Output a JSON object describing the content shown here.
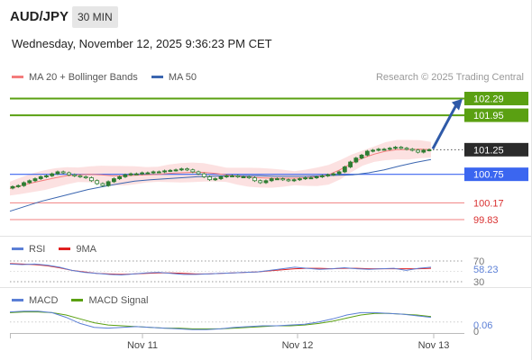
{
  "header": {
    "symbol": "AUD/JPY",
    "timeframe": "30 MIN",
    "datetime": "Wednesday, November 12, 2025 9:36:23 PM CET"
  },
  "legend": {
    "ma20": "MA 20 + Bollinger Bands",
    "ma50": "MA 50",
    "credit": "Research © 2025 Trading Central"
  },
  "colors": {
    "ma20": "#f47c7c",
    "ma50": "#3b66b0",
    "bands_fill": "#fbd9d9",
    "resistance": "#5aa012",
    "pivot": "#3b66f0",
    "support": "#f08080",
    "candle": "#2e7d32",
    "rsi": "#5b7fd6",
    "rsi_ma": "#e02020",
    "macd": "#5b7fd6",
    "macd_signal": "#5aa012",
    "arrow": "#2f5aa8"
  },
  "chart_data": [
    {
      "type": "candlestick",
      "panel": "price",
      "y_range": [
        99.5,
        102.5
      ],
      "x_labels": [
        "Nov 11",
        "Nov 12",
        "Nov 13"
      ],
      "levels": [
        {
          "label": "102.29",
          "value": 102.29,
          "kind": "resistance"
        },
        {
          "label": "101.95",
          "value": 101.95,
          "kind": "resistance"
        },
        {
          "label": "101.25",
          "value": 101.25,
          "kind": "last"
        },
        {
          "label": "100.75",
          "value": 100.75,
          "kind": "pivot"
        },
        {
          "label": "100.17",
          "value": 100.17,
          "kind": "support"
        },
        {
          "label": "99.83",
          "value": 99.83,
          "kind": "support"
        }
      ],
      "close_series": [
        100.5,
        100.52,
        100.58,
        100.62,
        100.66,
        100.7,
        100.72,
        100.76,
        100.8,
        100.78,
        100.74,
        100.72,
        100.7,
        100.68,
        100.62,
        100.56,
        100.52,
        100.6,
        100.66,
        100.7,
        100.74,
        100.76,
        100.76,
        100.78,
        100.78,
        100.8,
        100.8,
        100.82,
        100.83,
        100.84,
        100.86,
        100.84,
        100.8,
        100.76,
        100.7,
        100.64,
        100.66,
        100.7,
        100.72,
        100.72,
        100.7,
        100.7,
        100.68,
        100.62,
        100.58,
        100.62,
        100.66,
        100.66,
        100.64,
        100.62,
        100.64,
        100.66,
        100.68,
        100.68,
        100.7,
        100.72,
        100.74,
        100.76,
        100.8,
        100.9,
        101.0,
        101.08,
        101.14,
        101.22,
        101.24,
        101.26,
        101.26,
        101.28,
        101.3,
        101.28,
        101.26,
        101.24,
        101.2,
        101.24,
        101.25
      ],
      "ma20_series": [
        100.46,
        100.52,
        100.58,
        100.63,
        100.68,
        100.72,
        100.74,
        100.75,
        100.74,
        100.72,
        100.72,
        100.73,
        100.74,
        100.75,
        100.77,
        100.78,
        100.79,
        100.79,
        100.77,
        100.74,
        100.71,
        100.69,
        100.68,
        100.67,
        100.67,
        100.67,
        100.68,
        100.7,
        100.74,
        100.84,
        100.97,
        101.08,
        101.16,
        101.22,
        101.25,
        101.25,
        101.26,
        101.25
      ],
      "ma50_series": [
        100.0,
        100.1,
        100.2,
        100.28,
        100.36,
        100.44,
        100.5,
        100.56,
        100.61,
        100.64,
        100.66,
        100.68,
        100.7,
        100.71,
        100.72,
        100.72,
        100.72,
        100.71,
        100.71,
        100.71,
        100.72,
        100.73,
        100.74,
        100.78,
        100.84,
        100.92,
        100.99,
        101.05
      ]
    },
    {
      "type": "line",
      "panel": "rsi",
      "series": [
        {
          "name": "RSI"
        },
        {
          "name": "9MA"
        }
      ],
      "levels": [
        70,
        30
      ],
      "y_range": [
        30,
        70
      ],
      "current_label": "58.23",
      "tick_labels": [
        "70",
        "30"
      ],
      "rsi_series": [
        64,
        63,
        64,
        62,
        58,
        52,
        48,
        46,
        44,
        43,
        45,
        47,
        48,
        46,
        44,
        44,
        45,
        46,
        47,
        48,
        49,
        52,
        55,
        58,
        56,
        54,
        55,
        57,
        55,
        54,
        55,
        56,
        52,
        56,
        58
      ],
      "rsi_ma_series": [
        65,
        64,
        63,
        61,
        57,
        52,
        49,
        46,
        45,
        44,
        45,
        46,
        47,
        47,
        46,
        45,
        45,
        46,
        47,
        48,
        49,
        51,
        53,
        55,
        56,
        56,
        55,
        56,
        56,
        55,
        55,
        55,
        55,
        55,
        56
      ]
    },
    {
      "type": "line",
      "panel": "macd",
      "series": [
        {
          "name": "MACD"
        },
        {
          "name": "MACD Signal"
        }
      ],
      "current_label": "0.06",
      "tick_labels": [
        "0"
      ],
      "macd_series": [
        0.13,
        0.14,
        0.14,
        0.12,
        0.06,
        -0.02,
        -0.07,
        -0.08,
        -0.07,
        -0.06,
        -0.07,
        -0.08,
        -0.09,
        -0.1,
        -0.1,
        -0.09,
        -0.07,
        -0.06,
        -0.05,
        -0.05,
        -0.04,
        -0.03,
        0.0,
        0.04,
        0.09,
        0.12,
        0.12,
        0.11,
        0.1,
        0.08,
        0.06
      ],
      "signal_series": [
        0.12,
        0.13,
        0.13,
        0.12,
        0.09,
        0.04,
        -0.01,
        -0.04,
        -0.05,
        -0.06,
        -0.07,
        -0.08,
        -0.08,
        -0.09,
        -0.09,
        -0.09,
        -0.08,
        -0.07,
        -0.06,
        -0.05,
        -0.05,
        -0.04,
        -0.02,
        0.01,
        0.05,
        0.09,
        0.11,
        0.11,
        0.1,
        0.09,
        0.07
      ]
    }
  ],
  "sub_legends": {
    "rsi": "RSI",
    "rsi_ma": "9MA",
    "macd": "MACD",
    "macd_signal": "MACD Signal"
  }
}
